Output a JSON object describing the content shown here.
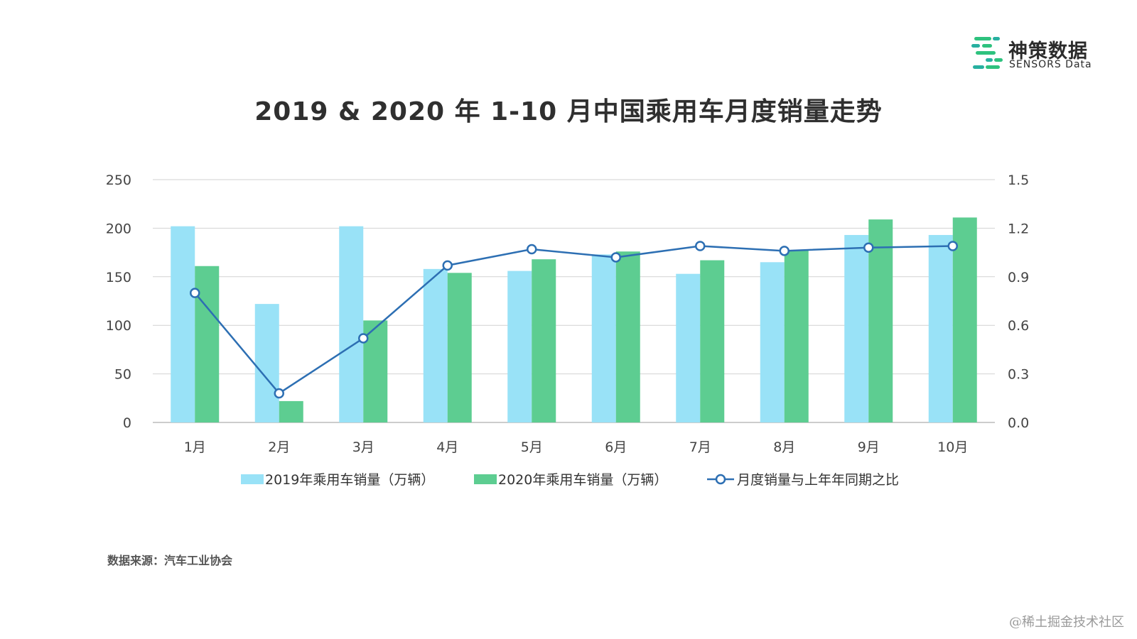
{
  "brand": {
    "name_cn": "神策数据",
    "name_en": "SENSORS Data",
    "colors": {
      "green": "#2ec27e",
      "teal": "#27b0a0"
    }
  },
  "footer": {
    "source": "数据来源：汽车工业协会",
    "watermark": "@稀土掘金技术社区"
  },
  "chart_data": {
    "type": "bar",
    "title": "2019 & 2020 年 1-10 月中国乘用车月度销量走势",
    "categories": [
      "1月",
      "2月",
      "3月",
      "4月",
      "5月",
      "6月",
      "7月",
      "8月",
      "9月",
      "10月"
    ],
    "series": [
      {
        "name": "2019年乘用车销量（万辆）",
        "type": "bar",
        "axis": "left",
        "color": "#99e2f7",
        "values": [
          202,
          122,
          202,
          158,
          156,
          173,
          153,
          165,
          193,
          193
        ]
      },
      {
        "name": "2020年乘用车销量（万辆）",
        "type": "bar",
        "axis": "left",
        "color": "#5dcd91",
        "values": [
          161,
          22,
          105,
          154,
          168,
          176,
          167,
          177,
          209,
          211
        ]
      },
      {
        "name": "月度销量与上年年同期之比",
        "type": "line",
        "axis": "right",
        "color": "#2d6fb3",
        "values": [
          0.8,
          0.18,
          0.52,
          0.97,
          1.07,
          1.02,
          1.09,
          1.06,
          1.08,
          1.09
        ]
      }
    ],
    "y_left": {
      "min": 0,
      "max": 250,
      "ticks": [
        "0",
        "50",
        "100",
        "150",
        "200",
        "250"
      ]
    },
    "y_right": {
      "min": 0,
      "max": 1.5,
      "ticks": [
        "0.0",
        "0.3",
        "0.6",
        "0.9",
        "1.2",
        "1.5"
      ]
    },
    "grid": true,
    "legend_position": "bottom"
  }
}
